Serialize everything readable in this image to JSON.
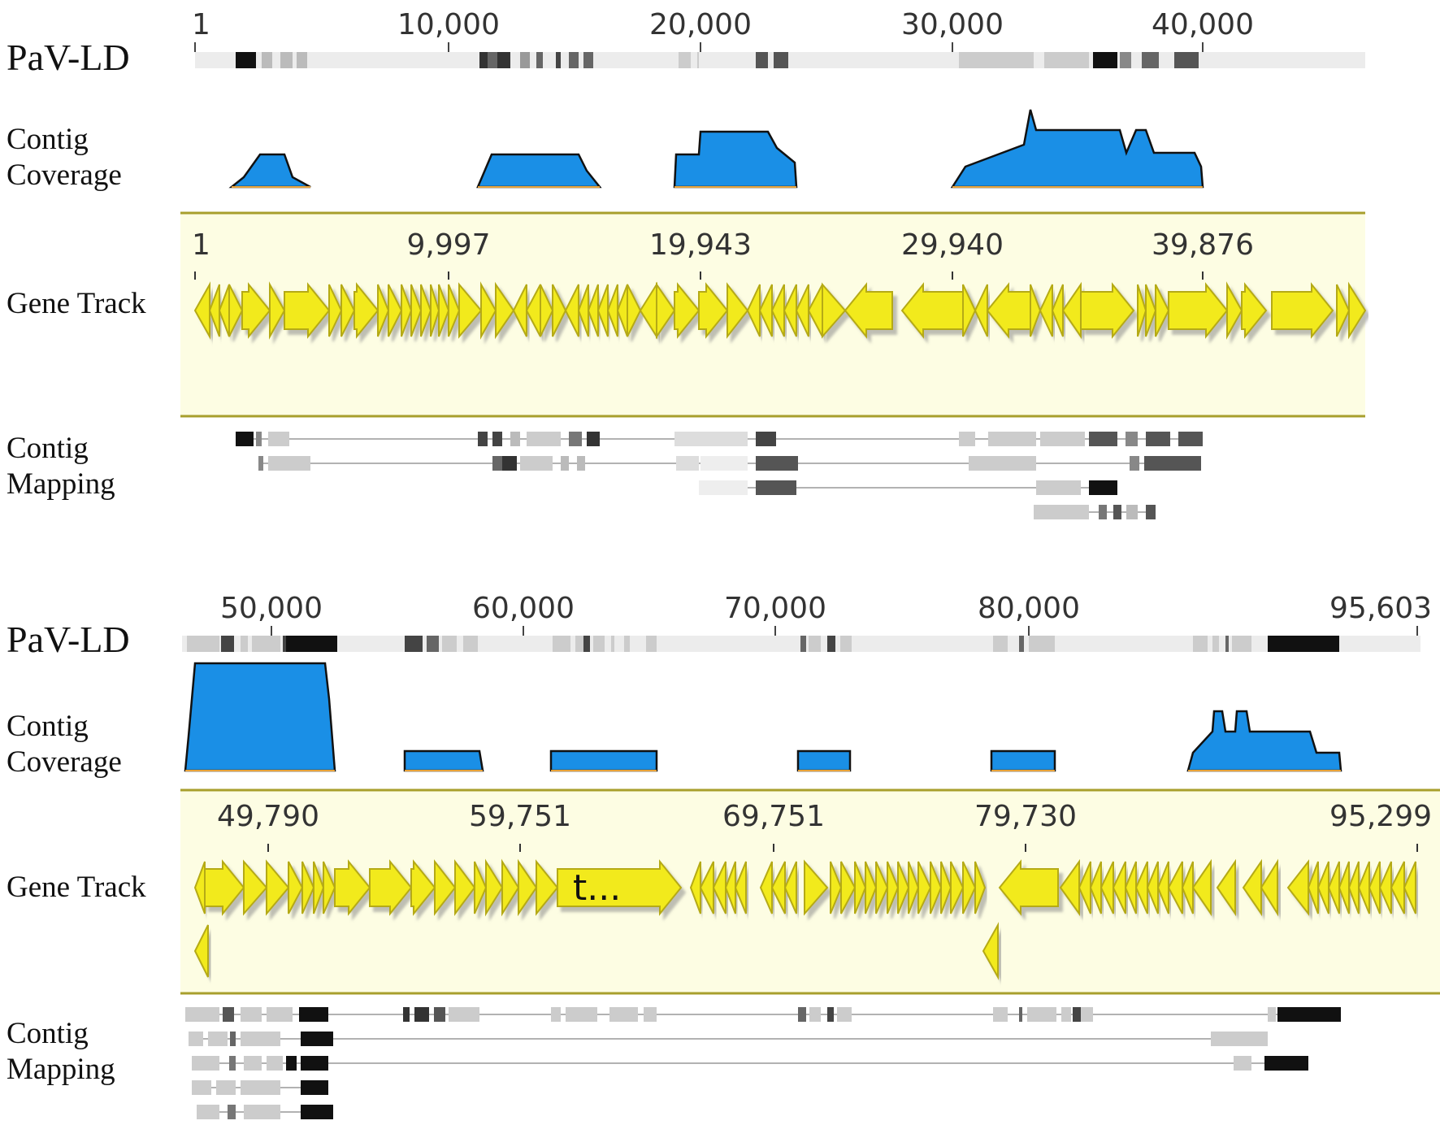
{
  "genome": "PaV-LD",
  "labels": {
    "coverage": "Contig\nCoverage",
    "gene_track": "Gene Track",
    "mapping": "Contig\nMapping"
  },
  "colors": {
    "coverage_fill": "#1a8fe6",
    "coverage_edge": "#e8a33a",
    "gene_fill": "#f2ea1c",
    "gene_stroke": "#b5aa14",
    "gene_panel": "#fdfde3",
    "panel_border": "#a89f2c",
    "seq_bar": "#ececec"
  },
  "icons": {
    "gene_arrow": "gene-arrow-icon"
  },
  "panels": [
    {
      "range": [
        1,
        47500
      ],
      "genome_ticks": [
        "1",
        "10,000",
        "20,000",
        "30,000",
        "40,000"
      ],
      "gene_ticks": [
        "1",
        "9,997",
        "19,943",
        "29,940",
        "39,876"
      ],
      "gene_names": []
    },
    {
      "range": [
        47000,
        96200
      ],
      "genome_ticks": [
        "50,000",
        "60,000",
        "70,000",
        "80,000",
        "95,603"
      ],
      "gene_ticks": [
        "49,790",
        "59,751",
        "69,751",
        "79,730",
        "95,299"
      ],
      "gene_names": [
        "t..."
      ]
    }
  ]
}
